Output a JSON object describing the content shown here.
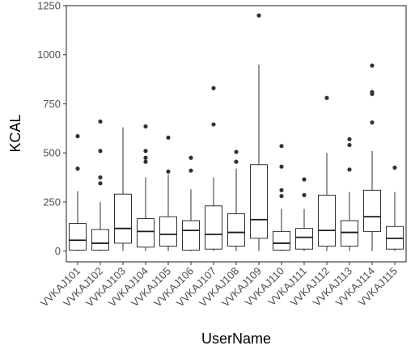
{
  "chart_data": {
    "type": "boxplot",
    "xlabel": "UserName",
    "ylabel": "KCAL",
    "ylim": [
      -55,
      1250
    ],
    "yticks": [
      0,
      250,
      500,
      750,
      1000,
      1250
    ],
    "grid": false,
    "categories": [
      "VVKAJ101",
      "VVKAJ102",
      "VVKAJ103",
      "VVKAJ104",
      "VVKAJ105",
      "VVKAJ106",
      "VVKAJ107",
      "VVKAJ108",
      "VVKAJ109",
      "VVKAJ110",
      "VVKAJ111",
      "VVKAJ112",
      "VVKAJ113",
      "VVKAJ114",
      "VVKAJ115"
    ],
    "boxes": [
      {
        "whisker_low": 0,
        "q1": 5,
        "median": 55,
        "q3": 140,
        "whisker_high": 305,
        "outliers": [
          585,
          420
        ]
      },
      {
        "whisker_low": 0,
        "q1": 5,
        "median": 40,
        "q3": 110,
        "whisker_high": 250,
        "outliers": [
          660,
          510,
          375,
          345
        ]
      },
      {
        "whisker_low": 0,
        "q1": 40,
        "median": 115,
        "q3": 290,
        "whisker_high": 630,
        "outliers": []
      },
      {
        "whisker_low": 0,
        "q1": 20,
        "median": 100,
        "q3": 165,
        "whisker_high": 375,
        "outliers": [
          635,
          510,
          475,
          455
        ]
      },
      {
        "whisker_low": 0,
        "q1": 25,
        "median": 85,
        "q3": 175,
        "whisker_high": 390,
        "outliers": [
          578,
          405
        ]
      },
      {
        "whisker_low": 0,
        "q1": 5,
        "median": 105,
        "q3": 155,
        "whisker_high": 315,
        "outliers": [
          475,
          410
        ]
      },
      {
        "whisker_low": 0,
        "q1": 10,
        "median": 85,
        "q3": 230,
        "whisker_high": 375,
        "outliers": [
          830,
          645
        ]
      },
      {
        "whisker_low": 0,
        "q1": 25,
        "median": 95,
        "q3": 190,
        "whisker_high": 420,
        "outliers": [
          505,
          455
        ]
      },
      {
        "whisker_low": 0,
        "q1": 65,
        "median": 160,
        "q3": 440,
        "whisker_high": 950,
        "outliers": [
          1200
        ]
      },
      {
        "whisker_low": 0,
        "q1": 5,
        "median": 40,
        "q3": 100,
        "whisker_high": 215,
        "outliers": [
          535,
          430,
          310,
          280
        ]
      },
      {
        "whisker_low": 0,
        "q1": 10,
        "median": 70,
        "q3": 115,
        "whisker_high": 215,
        "outliers": [
          365,
          285
        ]
      },
      {
        "whisker_low": 0,
        "q1": 25,
        "median": 105,
        "q3": 285,
        "whisker_high": 500,
        "outliers": [
          780
        ]
      },
      {
        "whisker_low": 0,
        "q1": 25,
        "median": 95,
        "q3": 155,
        "whisker_high": 300,
        "outliers": [
          570,
          540,
          415
        ]
      },
      {
        "whisker_low": 0,
        "q1": 100,
        "median": 175,
        "q3": 310,
        "whisker_high": 510,
        "outliers": [
          945,
          810,
          800,
          655
        ]
      },
      {
        "whisker_low": 0,
        "q1": 10,
        "median": 65,
        "q3": 125,
        "whisker_high": 300,
        "outliers": [
          425
        ]
      }
    ]
  }
}
